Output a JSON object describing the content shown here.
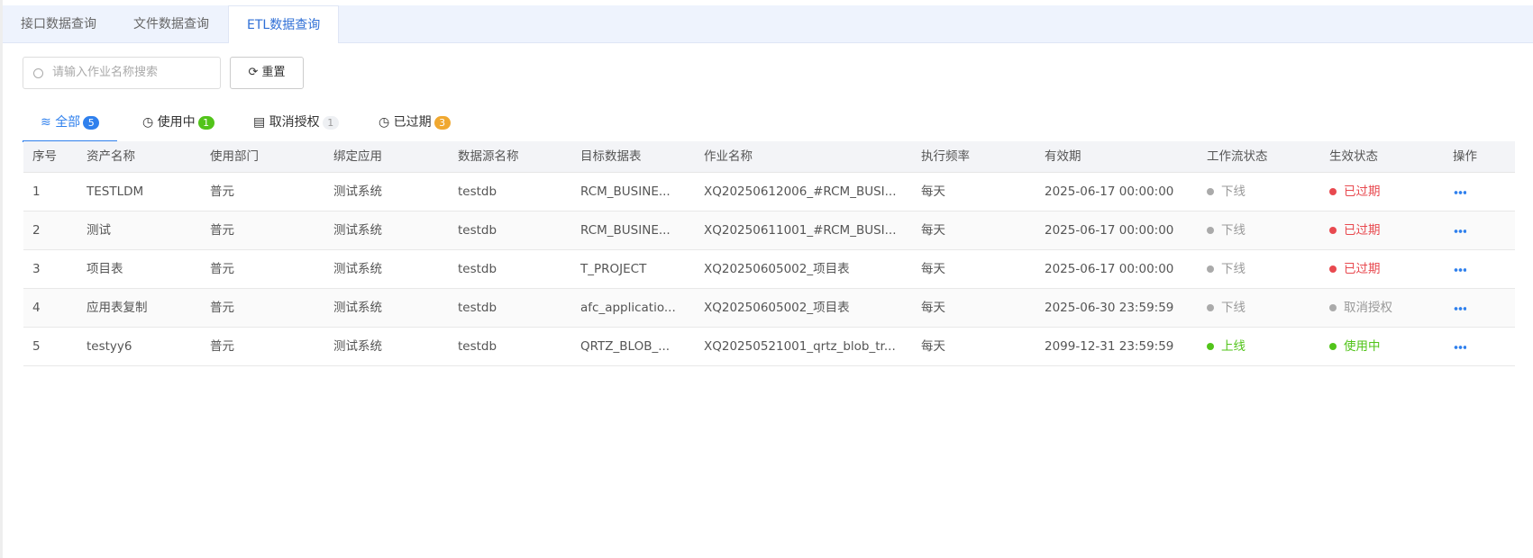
{
  "tabs": [
    "接口数据查询",
    "文件数据查询",
    "ETL数据查询"
  ],
  "search": {
    "placeholder": "请输入作业名称搜索"
  },
  "reset_button": "重置",
  "status_tabs": [
    {
      "label": "全部",
      "count": 5
    },
    {
      "label": "使用中",
      "count": 1
    },
    {
      "label": "取消授权",
      "count": 1
    },
    {
      "label": "已过期",
      "count": 3
    }
  ],
  "table": {
    "columns": [
      "序号",
      "资产名称",
      "使用部门",
      "绑定应用",
      "数据源名称",
      "目标数据表",
      "作业名称",
      "执行频率",
      "有效期",
      "工作流状态",
      "生效状态",
      "操作"
    ],
    "rows": [
      [
        "1",
        "TESTLDM",
        "普元",
        "测试系统",
        "testdb",
        "RCM_BUSINE...",
        "XQ20250612006_#RCM_BUSI...",
        "每天",
        "2025-06-17 00:00:00",
        "下线",
        "已过期"
      ],
      [
        "2",
        "测试",
        "普元",
        "测试系统",
        "testdb",
        "RCM_BUSINE...",
        "XQ20250611001_#RCM_BUSI...",
        "每天",
        "2025-06-17 00:00:00",
        "下线",
        "已过期"
      ],
      [
        "3",
        "项目表",
        "普元",
        "测试系统",
        "testdb",
        "T_PROJECT",
        "XQ20250605002_项目表",
        "每天",
        "2025-06-17 00:00:00",
        "下线",
        "已过期"
      ],
      [
        "4",
        "应用表复制",
        "普元",
        "测试系统",
        "testdb",
        "afc_applicatio...",
        "XQ20250605002_项目表",
        "每天",
        "2025-06-30 23:59:59",
        "下线",
        "取消授权"
      ],
      [
        "5",
        "testyy6",
        "普元",
        "测试系统",
        "testdb",
        "QRTZ_BLOB_...",
        "XQ20250521001_qrtz_blob_tr...",
        "每天",
        "2099-12-31 23:59:59",
        "上线",
        "使用中"
      ]
    ]
  }
}
